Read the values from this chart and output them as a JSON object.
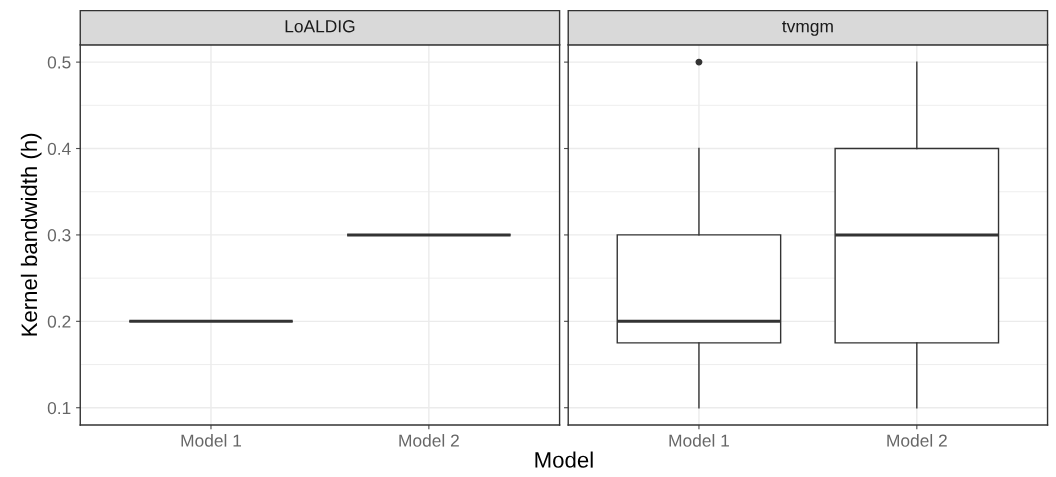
{
  "chart_data": [
    {
      "type": "box",
      "title": "LoALDIG",
      "xlabel": "Model",
      "ylabel": "Kernel bandwidth (h)",
      "categories": [
        "Model 1",
        "Model 2"
      ],
      "boxes": [
        {
          "low": 0.2,
          "q1": 0.2,
          "median": 0.2,
          "q3": 0.2,
          "high": 0.2
        },
        {
          "low": 0.3,
          "q1": 0.3,
          "median": 0.3,
          "q3": 0.3,
          "high": 0.3
        }
      ],
      "ylim": [
        0.08,
        0.52
      ],
      "yticks": [
        0.1,
        0.2,
        0.3,
        0.4,
        0.5
      ],
      "grid": true
    },
    {
      "type": "box",
      "title": "tvmgm",
      "categories": [
        "Model 1",
        "Model 2"
      ],
      "boxes": [
        {
          "low": 0.1,
          "q1": 0.175,
          "median": 0.2,
          "q3": 0.3,
          "high": 0.4,
          "outliers": [
            0.5
          ]
        },
        {
          "low": 0.1,
          "q1": 0.175,
          "median": 0.3,
          "q3": 0.4,
          "high": 0.5
        }
      ],
      "ylim": [
        0.08,
        0.52
      ],
      "yticks": [
        0.1,
        0.2,
        0.3,
        0.4,
        0.5
      ],
      "grid": true,
      "tick_labels": "x"
    }
  ]
}
